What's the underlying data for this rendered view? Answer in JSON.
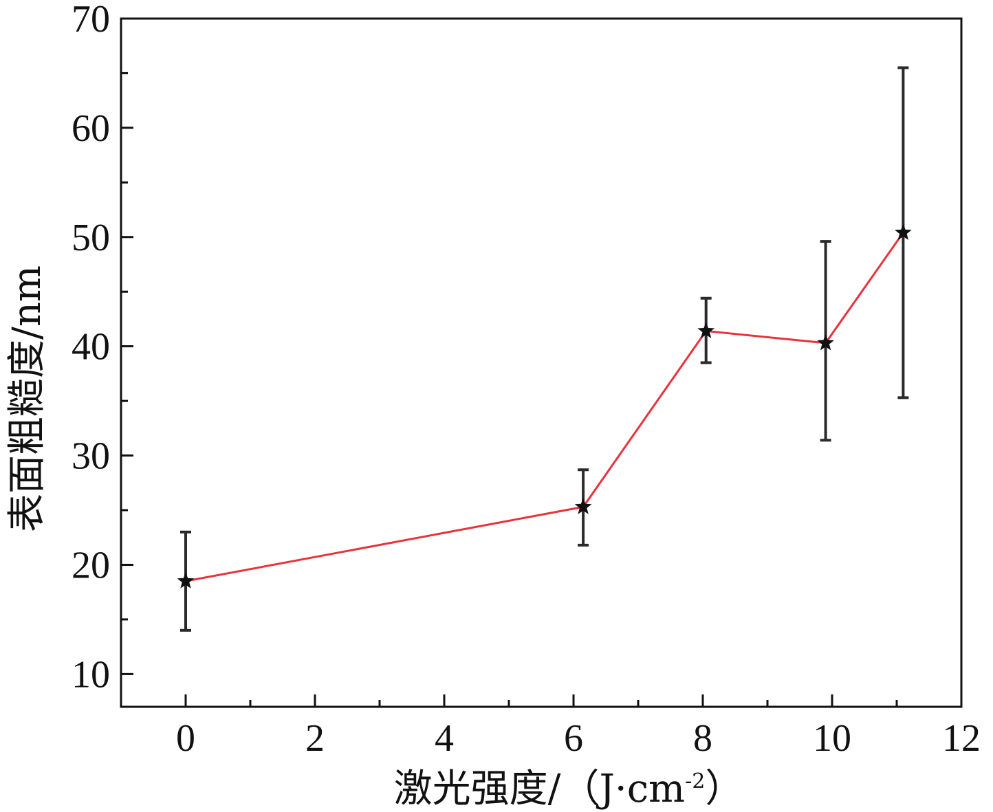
{
  "chart_data": {
    "type": "line",
    "title": "",
    "xlabel": "激光强度/（J·cm",
    "xlabel_sup": "-2",
    "xlabel_close": "）",
    "ylabel": "表面粗糙度/nm",
    "xlim": [
      -1,
      12
    ],
    "ylim": [
      7,
      70
    ],
    "x_ticks": [
      0,
      2,
      4,
      6,
      8,
      10,
      12
    ],
    "x_tick_labels": [
      "0",
      "2",
      "4",
      "6",
      "8",
      "10",
      "12"
    ],
    "x_minor_ticks": [
      1,
      3,
      5,
      7,
      9,
      11
    ],
    "y_ticks": [
      10,
      20,
      30,
      40,
      50,
      60,
      70
    ],
    "y_tick_labels": [
      "10",
      "20",
      "30",
      "40",
      "50",
      "60",
      "70"
    ],
    "y_minor_ticks": [
      15,
      25,
      35,
      45,
      55,
      65
    ],
    "grid": false,
    "series": [
      {
        "x": [
          0,
          6.15,
          8.05,
          9.9,
          11.1
        ],
        "y": [
          18.5,
          25.3,
          41.4,
          40.3,
          50.4
        ],
        "y_err_low": [
          14.0,
          21.8,
          38.5,
          31.4,
          35.3
        ],
        "y_err_high": [
          23.0,
          28.7,
          44.4,
          49.6,
          65.5
        ],
        "line_color": "#e8323c",
        "marker": "star",
        "marker_color": "#111111"
      }
    ]
  }
}
